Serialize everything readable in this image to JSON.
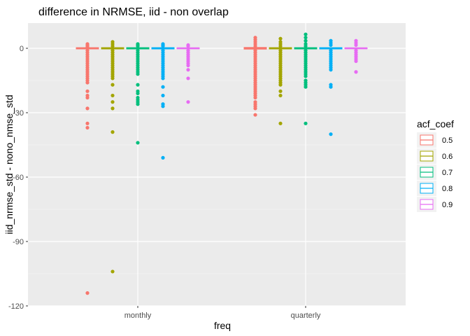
{
  "chart_data": {
    "type": "boxplot",
    "title": "difference in NRMSE, iid - non overlap",
    "xlabel": "freq",
    "ylabel": "iid_nrmse_std - nono_nmse_std",
    "categories": [
      "monthly",
      "quarterly"
    ],
    "y_ticks": [
      0,
      -30,
      -60,
      -90,
      -120
    ],
    "y_tick_labels": [
      "0",
      "-30",
      "-60",
      "-90",
      "-120"
    ],
    "ylim": [
      -120,
      12
    ],
    "grid": true,
    "legend": {
      "title": "acf_coef",
      "position": "right",
      "entries": [
        "0.5",
        "0.6",
        "0.7",
        "0.8",
        "0.9"
      ]
    },
    "series": [
      {
        "name": "0.5",
        "color": "#F8766D",
        "groups": [
          {
            "category": "monthly",
            "q1": -0.3,
            "median": 0,
            "q3": 0.3,
            "outliers": [
              2,
              1.5,
              1,
              0.5,
              -1,
              -2,
              -3,
              -4,
              -5,
              -6,
              -7,
              -8,
              -9,
              -10,
              -11,
              -12,
              -13,
              -14,
              -15,
              -16,
              -20,
              -22,
              -23,
              -28,
              -35,
              -37,
              -114
            ]
          },
          {
            "category": "quarterly",
            "q1": -0.4,
            "median": 0,
            "q3": 0.4,
            "outliers": [
              5,
              4,
              3,
              2,
              1,
              -1,
              -2,
              -3,
              -4,
              -5,
              -6,
              -7,
              -8,
              -9,
              -10,
              -11,
              -12,
              -13,
              -14,
              -15,
              -16,
              -17,
              -18,
              -19,
              -20,
              -21,
              -22,
              -23,
              -25,
              -26,
              -27,
              -28,
              -31
            ]
          }
        ]
      },
      {
        "name": "0.6",
        "color": "#A3A500",
        "groups": [
          {
            "category": "monthly",
            "q1": -0.3,
            "median": 0,
            "q3": 0.3,
            "outliers": [
              3,
              2,
              1,
              -1,
              -2,
              -3,
              -4,
              -5,
              -6,
              -7,
              -8,
              -9,
              -10,
              -11,
              -12,
              -13,
              -14,
              -17,
              -22,
              -25,
              -28,
              -39,
              -104
            ]
          },
          {
            "category": "quarterly",
            "q1": -0.3,
            "median": 0,
            "q3": 0.3,
            "outliers": [
              4.5,
              3,
              2,
              1,
              -1,
              -2,
              -3,
              -4,
              -5,
              -6,
              -7,
              -8,
              -9,
              -10,
              -11,
              -12,
              -13,
              -14,
              -15,
              -16,
              -17,
              -20,
              -22,
              -35
            ]
          }
        ]
      },
      {
        "name": "0.7",
        "color": "#00BF7D",
        "groups": [
          {
            "category": "monthly",
            "q1": -0.3,
            "median": 0,
            "q3": 0.3,
            "outliers": [
              2,
              1.5,
              1,
              -1,
              -2,
              -3,
              -4,
              -5,
              -6,
              -7,
              -8,
              -9,
              -10,
              -11,
              -12,
              -17,
              -20,
              -21,
              -23,
              -24,
              -25,
              -26,
              -44
            ]
          },
          {
            "category": "quarterly",
            "q1": -0.3,
            "median": 0,
            "q3": 0.3,
            "outliers": [
              6.5,
              5,
              3.5,
              2,
              1,
              -1,
              -2,
              -3,
              -4,
              -5,
              -6,
              -7,
              -8,
              -9,
              -10,
              -11,
              -12,
              -13,
              -15,
              -16,
              -17,
              -18,
              -35
            ]
          }
        ]
      },
      {
        "name": "0.8",
        "color": "#00B0F6",
        "groups": [
          {
            "category": "monthly",
            "q1": -0.3,
            "median": 0,
            "q3": 0.3,
            "outliers": [
              2,
              1.5,
              1,
              -1,
              -2,
              -3,
              -4,
              -5,
              -6,
              -7,
              -8,
              -9,
              -10,
              -11,
              -12,
              -13,
              -14,
              -18,
              -22,
              -26,
              -27,
              -51
            ]
          },
          {
            "category": "quarterly",
            "q1": -0.3,
            "median": 0,
            "q3": 0.3,
            "outliers": [
              3.5,
              2.5,
              1.5,
              -1,
              -2,
              -3,
              -4,
              -5,
              -6,
              -7,
              -8,
              -9,
              -10,
              -17,
              -18,
              -40
            ]
          }
        ]
      },
      {
        "name": "0.9",
        "color": "#E76BF3",
        "groups": [
          {
            "category": "monthly",
            "q1": -0.2,
            "median": 0,
            "q3": 0.2,
            "outliers": [
              1.5,
              1,
              -1,
              -2,
              -3,
              -4,
              -5,
              -6,
              -7,
              -8,
              -10,
              -14,
              -25
            ]
          },
          {
            "category": "quarterly",
            "q1": -0.2,
            "median": 0,
            "q3": 0.2,
            "outliers": [
              3.5,
              2.5,
              1.5,
              -1,
              -2,
              -3,
              -4,
              -5,
              -6,
              -11
            ]
          }
        ]
      }
    ]
  }
}
